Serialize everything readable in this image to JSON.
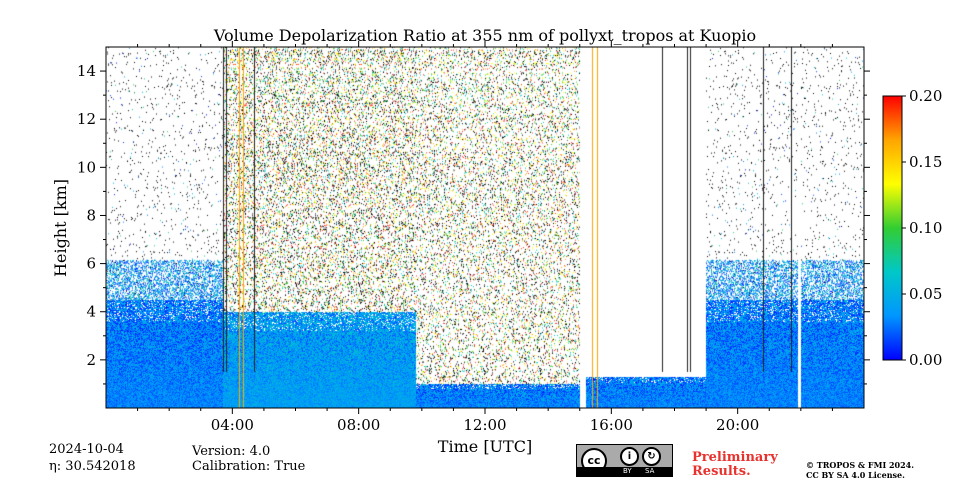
{
  "chart_data": {
    "type": "heatmap",
    "title": "Volume Depolarization Ratio at 355 nm of pollyxt_tropos at Kuopio",
    "xlabel": "Time [UTC]",
    "ylabel": "Height [km]",
    "xlim": [
      0,
      24
    ],
    "ylim": [
      0,
      15
    ],
    "x_ticks": [
      4,
      8,
      12,
      16,
      20
    ],
    "x_tick_labels": [
      "04:00",
      "08:00",
      "12:00",
      "16:00",
      "20:00"
    ],
    "y_ticks": [
      2,
      4,
      6,
      8,
      10,
      12,
      14
    ],
    "y_tick_labels": [
      "2",
      "4",
      "6",
      "8",
      "10",
      "12",
      "14"
    ],
    "colorbar": {
      "vmin": 0.0,
      "vmax": 0.2,
      "ticks": [
        0.0,
        0.05,
        0.1,
        0.15,
        0.2
      ],
      "tick_labels": [
        "0.00",
        "0.05",
        "0.10",
        "0.15",
        "0.20"
      ],
      "colors": [
        "#0000ff",
        "#0096ff",
        "#00c8c8",
        "#32cd32",
        "#ffff00",
        "#ffa500",
        "#ff0000"
      ]
    },
    "regions": [
      {
        "t0": 0.0,
        "t1": 3.7,
        "top": 4.5,
        "base_value": 0.03,
        "noise": "sparse"
      },
      {
        "t0": 3.7,
        "t1": 9.8,
        "top": 4.0,
        "base_value": 0.04,
        "noise": "dense"
      },
      {
        "t0": 9.8,
        "t1": 15.0,
        "top": 1.0,
        "base_value": 0.03,
        "noise": "dense"
      },
      {
        "t0": 15.2,
        "t1": 19.0,
        "top": 1.3,
        "base_value": 0.03,
        "noise": "none"
      },
      {
        "t0": 19.0,
        "t1": 24.0,
        "top": 4.5,
        "base_value": 0.03,
        "noise": "sparse"
      }
    ],
    "gaps_hours": [
      [
        15.0,
        15.15
      ],
      [
        21.9,
        22.0
      ]
    ],
    "orange_lines_hours": [
      4.2,
      4.35,
      15.4,
      15.55
    ],
    "dark_lines_hours": [
      3.7,
      3.8,
      4.7,
      17.6,
      18.4,
      18.5,
      20.8,
      21.7
    ]
  },
  "footer": {
    "date": "2024-10-04",
    "eta": "η: 30.542018",
    "version": "Version: 4.0",
    "calibration": "Calibration: True",
    "preliminary_1": "Preliminary",
    "preliminary_2": "Results.",
    "copyright_1": "© TROPOS & FMI 2024.",
    "copyright_2": "CC BY SA 4.0 License.",
    "cc_badge_by": "BY",
    "cc_badge_sa": "SA"
  }
}
